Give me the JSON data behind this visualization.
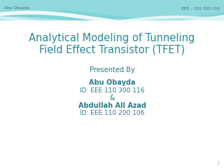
{
  "background_color": "#ffffff",
  "header_left": "Abu Obayda",
  "header_right": "EEE – 110 300 116",
  "title_line1": "Analytical Modeling of Tunneling",
  "title_line2": "Field Effect Transistor (TFET)",
  "title_color": "#2a8a96",
  "presented_by": "Presented By",
  "name1": "Abu Obayda",
  "id1": "ID: EEE 110 300 116",
  "ampersand": "&",
  "name2": "Abdullah All Azad",
  "id2": "ID: EEE 110 200 106",
  "body_color": "#2a7a8a",
  "header_color": "#4a6a70",
  "slide_number": "1",
  "wave_color_bg": "#7dd4d8",
  "wave_color_mid": "#9edee0",
  "wave_color_light": "#c8eff0",
  "wave_color_white": "#e8f8f8"
}
